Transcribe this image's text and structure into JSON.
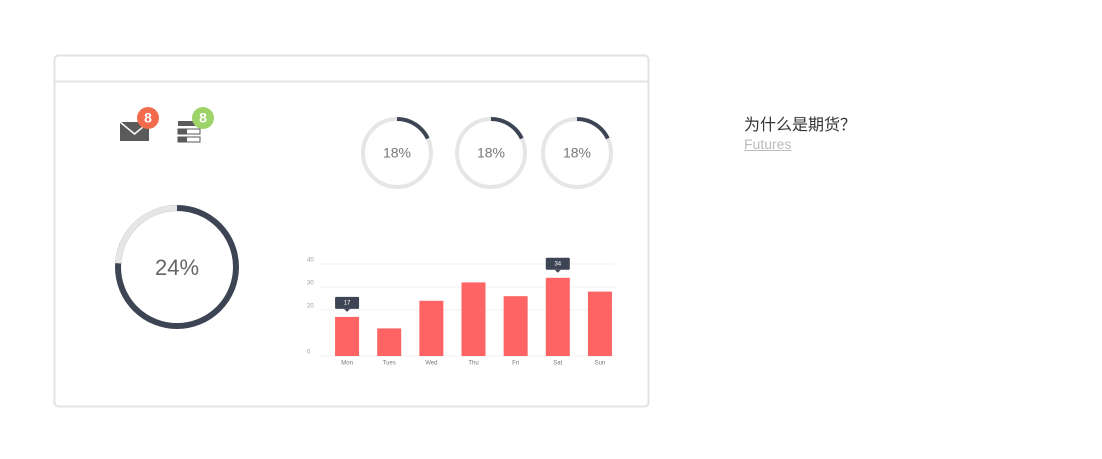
{
  "badges": [
    {
      "count": 8,
      "color": "#f26b4d"
    },
    {
      "count": 8,
      "color": "#9ed36a"
    }
  ],
  "gauges": [
    {
      "value": 18,
      "label": "18%"
    },
    {
      "value": 18,
      "label": "18%"
    },
    {
      "value": 18,
      "label": "18%"
    }
  ],
  "main_gauge": {
    "value": 24,
    "label": "24%"
  },
  "chart_data": {
    "type": "bar",
    "categories": [
      "Mon",
      "Tues",
      "Wed",
      "Thu",
      "Fri",
      "Sat",
      "Sun"
    ],
    "values": [
      17,
      12,
      24,
      32,
      26,
      34,
      28
    ],
    "color": "#ff6464",
    "ylim": [
      0,
      40
    ],
    "yticks": [
      0,
      20,
      30,
      40
    ],
    "grid": true,
    "highlight": [
      "Mon",
      "Sat"
    ]
  },
  "aside": {
    "question": "为什么是期货？",
    "link": "Futures"
  }
}
